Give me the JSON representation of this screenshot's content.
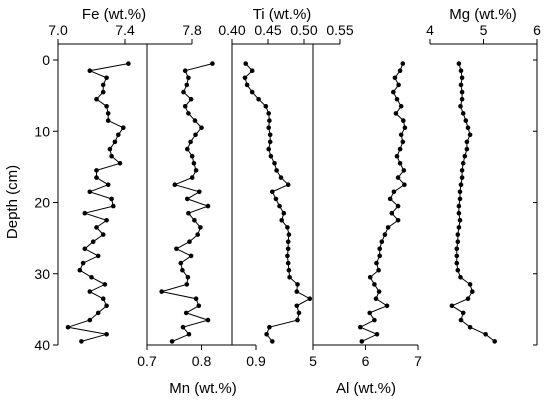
{
  "chart_data": {
    "type": "line",
    "marker": "circle",
    "color": "#000000",
    "grid": false,
    "y_axis": {
      "label": "Depth (cm)",
      "ylim": [
        0,
        40
      ],
      "inverted": true,
      "ticks": [
        0,
        10,
        20,
        30,
        40
      ],
      "tick_labels": [
        "0",
        "10",
        "20",
        "30",
        "40"
      ]
    },
    "depth": [
      0.5,
      1.5,
      2.5,
      3.5,
      4.5,
      5.5,
      6.5,
      7.5,
      8.5,
      9.5,
      10.5,
      11.5,
      12.5,
      13.5,
      14.5,
      15.5,
      16.5,
      17.5,
      18.5,
      19.5,
      20.5,
      21.5,
      22.5,
      23.5,
      24.5,
      25.5,
      26.5,
      27.5,
      28.5,
      29.5,
      30.5,
      31.5,
      32.5,
      33.5,
      34.5,
      35.5,
      36.5,
      37.5,
      38.5,
      39.5
    ],
    "series": [
      {
        "xlabel": "Fe (wt.%)",
        "axis": "top",
        "xlim": [
          7.0,
          7.8
        ],
        "ticks": [
          7.0,
          7.4,
          7.8
        ],
        "tick_labels": [
          "7.0",
          "7.4",
          "7.8"
        ],
        "values": [
          7.42,
          7.19,
          7.29,
          7.27,
          7.27,
          7.23,
          7.29,
          7.3,
          7.3,
          7.39,
          7.36,
          7.34,
          7.31,
          7.32,
          7.37,
          7.23,
          7.23,
          7.3,
          7.19,
          7.32,
          7.33,
          7.16,
          7.29,
          7.23,
          7.27,
          7.21,
          7.16,
          7.24,
          7.15,
          7.13,
          7.2,
          7.28,
          7.19,
          7.27,
          7.29,
          7.24,
          7.19,
          7.06,
          7.29,
          7.14
        ]
      },
      {
        "xlabel": "Mn (wt.%)",
        "axis": "bottom",
        "xlim": [
          0.7,
          0.9
        ],
        "ticks": [
          0.7,
          0.8,
          0.9
        ],
        "tick_labels": [
          "0.7",
          "0.8",
          "0.9"
        ],
        "values": [
          0.82,
          0.77,
          0.776,
          0.773,
          0.767,
          0.781,
          0.77,
          0.776,
          0.788,
          0.8,
          0.789,
          0.78,
          0.774,
          0.783,
          0.786,
          0.79,
          0.783,
          0.751,
          0.796,
          0.774,
          0.812,
          0.776,
          0.787,
          0.798,
          0.793,
          0.778,
          0.754,
          0.781,
          0.762,
          0.765,
          0.775,
          0.773,
          0.727,
          0.79,
          0.795,
          0.772,
          0.812,
          0.766,
          0.777,
          0.746
        ]
      },
      {
        "xlabel": "Ti (wt.%)",
        "axis": "top",
        "xlim": [
          0.4,
          0.55
        ],
        "ticks": [
          0.4,
          0.45,
          0.5,
          0.55
        ],
        "tick_labels": [
          "0.40",
          "0.45",
          "0.50",
          "0.55"
        ],
        "values": [
          0.419,
          0.428,
          0.418,
          0.421,
          0.428,
          0.437,
          0.447,
          0.451,
          0.452,
          0.451,
          0.453,
          0.453,
          0.451,
          0.454,
          0.459,
          0.462,
          0.468,
          0.478,
          0.456,
          0.461,
          0.466,
          0.472,
          0.469,
          0.477,
          0.479,
          0.478,
          0.478,
          0.477,
          0.478,
          0.479,
          0.48,
          0.491,
          0.49,
          0.508,
          0.49,
          0.493,
          0.491,
          0.452,
          0.448,
          0.456
        ]
      },
      {
        "xlabel": "Al (wt.%)",
        "axis": "bottom",
        "xlim": [
          5,
          7
        ],
        "ticks": [
          5,
          6,
          7
        ],
        "tick_labels": [
          "5",
          "6",
          "7"
        ],
        "values": [
          6.71,
          6.66,
          6.56,
          6.63,
          6.53,
          6.6,
          6.68,
          6.58,
          6.72,
          6.75,
          6.68,
          6.71,
          6.66,
          6.6,
          6.66,
          6.73,
          6.62,
          6.74,
          6.54,
          6.47,
          6.62,
          6.5,
          6.62,
          6.43,
          6.37,
          6.31,
          6.27,
          6.27,
          6.21,
          6.25,
          6.09,
          6.17,
          6.26,
          6.2,
          6.41,
          6.08,
          6.17,
          5.9,
          6.22,
          5.93
        ]
      },
      {
        "xlabel": "Mg (wt.%)",
        "axis": "top",
        "xlim": [
          4,
          6
        ],
        "ticks": [
          4,
          5,
          6
        ],
        "tick_labels": [
          "4",
          "5",
          "6"
        ],
        "values": [
          4.54,
          4.58,
          4.6,
          4.58,
          4.6,
          4.6,
          4.57,
          4.62,
          4.67,
          4.71,
          4.75,
          4.69,
          4.69,
          4.65,
          4.62,
          4.6,
          4.6,
          4.58,
          4.56,
          4.56,
          4.54,
          4.54,
          4.56,
          4.54,
          4.52,
          4.52,
          4.5,
          4.5,
          4.5,
          4.52,
          4.57,
          4.75,
          4.79,
          4.71,
          4.41,
          4.62,
          4.58,
          4.75,
          5.04,
          5.21
        ]
      }
    ]
  }
}
